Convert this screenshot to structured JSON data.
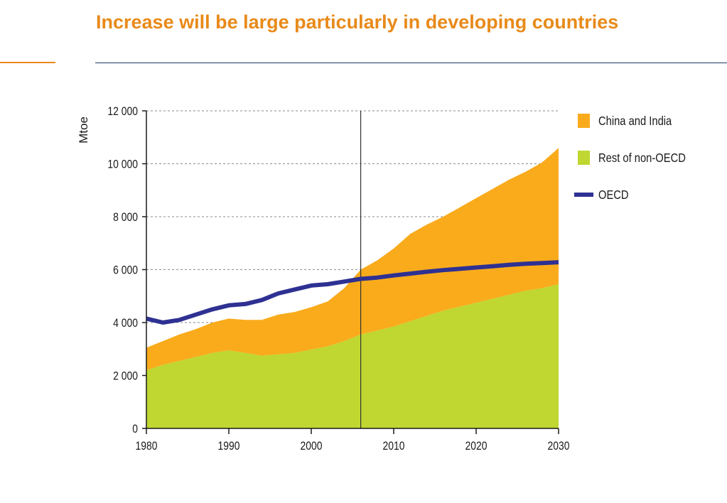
{
  "slide": {
    "title": "Increase will be large particularly in developing countries",
    "accent_color": "#e88a1a",
    "rule_color": "#1f3864"
  },
  "chart_data": {
    "type": "area",
    "title": "",
    "xlabel": "",
    "ylabel": "Mtoe",
    "xlim": [
      1980,
      2030
    ],
    "ylim": [
      0,
      12000
    ],
    "x_ticks": [
      1980,
      1990,
      2000,
      2010,
      2020,
      2030
    ],
    "y_ticks": [
      0,
      2000,
      4000,
      6000,
      8000,
      10000,
      12000
    ],
    "y_tick_labels": [
      "0",
      "2 000",
      "4 000",
      "6 000",
      "8 000",
      "10 000",
      "12 000"
    ],
    "grid": "horizontal dashed",
    "vertical_marker_x": 2006,
    "legend_position": "right",
    "x": [
      1980,
      1982,
      1984,
      1986,
      1988,
      1990,
      1992,
      1994,
      1996,
      1998,
      2000,
      2002,
      2004,
      2006,
      2008,
      2010,
      2012,
      2014,
      2016,
      2018,
      2020,
      2022,
      2024,
      2026,
      2028,
      2030
    ],
    "series": [
      {
        "name": "Rest of non-OECD",
        "kind": "stacked-area",
        "color": "#bfd730",
        "values": [
          2200,
          2400,
          2550,
          2700,
          2850,
          2950,
          2850,
          2750,
          2800,
          2850,
          2980,
          3100,
          3300,
          3550,
          3700,
          3850,
          4050,
          4250,
          4450,
          4600,
          4750,
          4900,
          5050,
          5200,
          5300,
          5450
        ]
      },
      {
        "name": "China and India",
        "kind": "stacked-area",
        "color": "#f9ab1c",
        "values": [
          850,
          900,
          1000,
          1050,
          1150,
          1200,
          1250,
          1350,
          1500,
          1550,
          1600,
          1700,
          2000,
          2450,
          2650,
          2950,
          3300,
          3450,
          3550,
          3750,
          3950,
          4150,
          4350,
          4500,
          4750,
          5150
        ]
      },
      {
        "name": "OECD",
        "kind": "line",
        "color": "#2e3192",
        "values": [
          4150,
          4000,
          4100,
          4300,
          4500,
          4650,
          4700,
          4850,
          5100,
          5250,
          5400,
          5450,
          5550,
          5650,
          5700,
          5780,
          5850,
          5920,
          5980,
          6030,
          6080,
          6130,
          6180,
          6220,
          6250,
          6280
        ]
      }
    ]
  }
}
